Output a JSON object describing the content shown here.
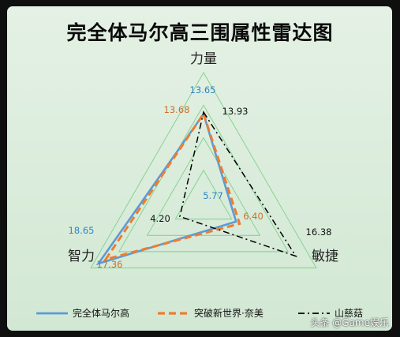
{
  "chart_data": {
    "type": "radar",
    "title": "完全体马尔高三围属性雷达图",
    "axes": [
      "力量",
      "敏捷",
      "智力"
    ],
    "scale_max": 20,
    "rings": 4,
    "series": [
      {
        "name": "完全体马尔高",
        "values": [
          13.65,
          5.77,
          18.65
        ],
        "color": "#5b9bd5",
        "dash": "solid"
      },
      {
        "name": "突破新世界·奈美",
        "values": [
          13.68,
          6.4,
          17.36
        ],
        "color": "#ed7d31",
        "dash": "dashed"
      },
      {
        "name": "山慈菇",
        "values": [
          13.93,
          16.38,
          4.2
        ],
        "color": "#000000",
        "dash": "dashdot"
      }
    ],
    "legend_position": "bottom"
  },
  "watermark": "头条 @Game娱乐"
}
